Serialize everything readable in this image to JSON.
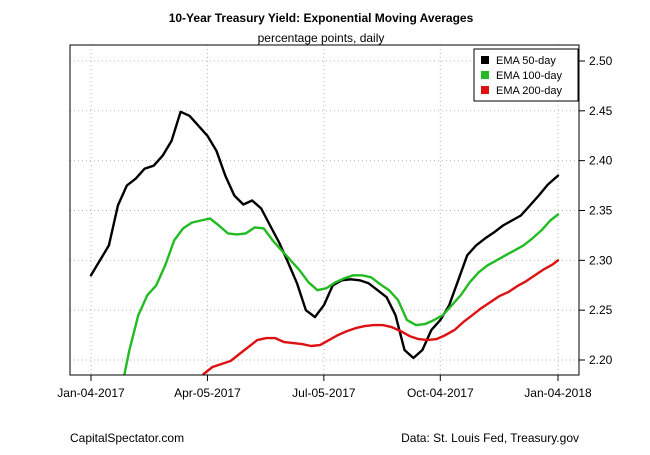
{
  "chart_data": {
    "type": "line",
    "title": "10-Year Treasury Yield: Exponential Moving Averages",
    "subtitle": "percentage points, daily",
    "xlabel": "",
    "ylabel": "",
    "x_tick_labels": [
      "Jan-04-2017",
      "Apr-05-2017",
      "Jul-05-2017",
      "Oct-04-2017",
      "Jan-04-2018"
    ],
    "y_tick_labels": [
      "2.20",
      "2.25",
      "2.30",
      "2.35",
      "2.40",
      "2.45",
      "2.50"
    ],
    "y_ticks": [
      2.2,
      2.25,
      2.3,
      2.35,
      2.4,
      2.45,
      2.5
    ],
    "ylim": [
      2.185,
      2.53
    ],
    "xlim": [
      "2016-12-22",
      "2018-01-12"
    ],
    "grid": true,
    "legend_position": "top-right",
    "series": [
      {
        "name": "EMA 50-day",
        "color": "#000000",
        "points": [
          [
            "2017-01-04",
            2.285
          ],
          [
            "2017-01-11",
            2.3
          ],
          [
            "2017-01-18",
            2.315
          ],
          [
            "2017-01-25",
            2.355
          ],
          [
            "2017-02-01",
            2.375
          ],
          [
            "2017-02-08",
            2.382
          ],
          [
            "2017-02-15",
            2.392
          ],
          [
            "2017-02-22",
            2.395
          ],
          [
            "2017-03-01",
            2.405
          ],
          [
            "2017-03-08",
            2.42
          ],
          [
            "2017-03-15",
            2.449
          ],
          [
            "2017-03-22",
            2.445
          ],
          [
            "2017-03-29",
            2.435
          ],
          [
            "2017-04-05",
            2.425
          ],
          [
            "2017-04-12",
            2.41
          ],
          [
            "2017-04-19",
            2.385
          ],
          [
            "2017-04-26",
            2.365
          ],
          [
            "2017-05-03",
            2.356
          ],
          [
            "2017-05-10",
            2.36
          ],
          [
            "2017-05-17",
            2.352
          ],
          [
            "2017-05-24",
            2.335
          ],
          [
            "2017-05-31",
            2.318
          ],
          [
            "2017-06-07",
            2.298
          ],
          [
            "2017-06-14",
            2.277
          ],
          [
            "2017-06-21",
            2.25
          ],
          [
            "2017-06-28",
            2.243
          ],
          [
            "2017-07-05",
            2.255
          ],
          [
            "2017-07-12",
            2.275
          ],
          [
            "2017-07-19",
            2.28
          ],
          [
            "2017-07-26",
            2.281
          ],
          [
            "2017-08-02",
            2.28
          ],
          [
            "2017-08-09",
            2.277
          ],
          [
            "2017-08-16",
            2.27
          ],
          [
            "2017-08-23",
            2.263
          ],
          [
            "2017-08-30",
            2.245
          ],
          [
            "2017-09-06",
            2.21
          ],
          [
            "2017-09-13",
            2.202
          ],
          [
            "2017-09-20",
            2.21
          ],
          [
            "2017-09-27",
            2.23
          ],
          [
            "2017-10-04",
            2.24
          ],
          [
            "2017-10-11",
            2.255
          ],
          [
            "2017-10-18",
            2.28
          ],
          [
            "2017-10-25",
            2.305
          ],
          [
            "2017-11-01",
            2.315
          ],
          [
            "2017-11-08",
            2.322
          ],
          [
            "2017-11-15",
            2.328
          ],
          [
            "2017-11-22",
            2.335
          ],
          [
            "2017-11-29",
            2.34
          ],
          [
            "2017-12-06",
            2.345
          ],
          [
            "2017-12-13",
            2.355
          ],
          [
            "2017-12-20",
            2.365
          ],
          [
            "2017-12-27",
            2.376
          ],
          [
            "2018-01-04",
            2.385
          ]
        ]
      },
      {
        "name": "EMA 100-day",
        "color": "#22bb22",
        "points": [
          [
            "2017-01-30",
            2.185
          ],
          [
            "2017-02-03",
            2.21
          ],
          [
            "2017-02-10",
            2.245
          ],
          [
            "2017-02-17",
            2.265
          ],
          [
            "2017-02-24",
            2.275
          ],
          [
            "2017-03-03",
            2.295
          ],
          [
            "2017-03-10",
            2.32
          ],
          [
            "2017-03-17",
            2.332
          ],
          [
            "2017-03-24",
            2.338
          ],
          [
            "2017-03-31",
            2.34
          ],
          [
            "2017-04-07",
            2.342
          ],
          [
            "2017-04-14",
            2.335
          ],
          [
            "2017-04-21",
            2.327
          ],
          [
            "2017-04-28",
            2.326
          ],
          [
            "2017-05-05",
            2.327
          ],
          [
            "2017-05-12",
            2.333
          ],
          [
            "2017-05-19",
            2.332
          ],
          [
            "2017-05-26",
            2.32
          ],
          [
            "2017-06-02",
            2.31
          ],
          [
            "2017-06-09",
            2.3
          ],
          [
            "2017-06-16",
            2.29
          ],
          [
            "2017-06-23",
            2.278
          ],
          [
            "2017-06-30",
            2.27
          ],
          [
            "2017-07-07",
            2.272
          ],
          [
            "2017-07-14",
            2.278
          ],
          [
            "2017-07-21",
            2.282
          ],
          [
            "2017-07-28",
            2.285
          ],
          [
            "2017-08-04",
            2.285
          ],
          [
            "2017-08-11",
            2.283
          ],
          [
            "2017-08-18",
            2.276
          ],
          [
            "2017-08-25",
            2.27
          ],
          [
            "2017-09-01",
            2.26
          ],
          [
            "2017-09-08",
            2.24
          ],
          [
            "2017-09-15",
            2.235
          ],
          [
            "2017-09-22",
            2.236
          ],
          [
            "2017-09-29",
            2.24
          ],
          [
            "2017-10-06",
            2.245
          ],
          [
            "2017-10-13",
            2.255
          ],
          [
            "2017-10-20",
            2.265
          ],
          [
            "2017-10-27",
            2.278
          ],
          [
            "2017-11-03",
            2.288
          ],
          [
            "2017-11-10",
            2.295
          ],
          [
            "2017-11-17",
            2.3
          ],
          [
            "2017-11-24",
            2.305
          ],
          [
            "2017-12-01",
            2.31
          ],
          [
            "2017-12-08",
            2.315
          ],
          [
            "2017-12-15",
            2.322
          ],
          [
            "2017-12-22",
            2.33
          ],
          [
            "2017-12-29",
            2.34
          ],
          [
            "2018-01-04",
            2.346
          ]
        ]
      },
      {
        "name": "EMA 200-day",
        "color": "#dd1111",
        "points": [
          [
            "2017-04-02",
            2.186
          ],
          [
            "2017-04-09",
            2.193
          ],
          [
            "2017-04-16",
            2.196
          ],
          [
            "2017-04-23",
            2.199
          ],
          [
            "2017-04-30",
            2.206
          ],
          [
            "2017-05-07",
            2.213
          ],
          [
            "2017-05-14",
            2.22
          ],
          [
            "2017-05-21",
            2.222
          ],
          [
            "2017-05-28",
            2.222
          ],
          [
            "2017-06-04",
            2.218
          ],
          [
            "2017-06-11",
            2.217
          ],
          [
            "2017-06-18",
            2.216
          ],
          [
            "2017-06-25",
            2.214
          ],
          [
            "2017-07-02",
            2.215
          ],
          [
            "2017-07-09",
            2.22
          ],
          [
            "2017-07-16",
            2.225
          ],
          [
            "2017-07-23",
            2.229
          ],
          [
            "2017-07-30",
            2.232
          ],
          [
            "2017-08-06",
            2.234
          ],
          [
            "2017-08-13",
            2.235
          ],
          [
            "2017-08-20",
            2.235
          ],
          [
            "2017-08-27",
            2.233
          ],
          [
            "2017-09-03",
            2.229
          ],
          [
            "2017-09-10",
            2.224
          ],
          [
            "2017-09-17",
            2.221
          ],
          [
            "2017-09-24",
            2.22
          ],
          [
            "2017-10-01",
            2.221
          ],
          [
            "2017-10-08",
            2.225
          ],
          [
            "2017-10-15",
            2.23
          ],
          [
            "2017-10-22",
            2.238
          ],
          [
            "2017-10-29",
            2.245
          ],
          [
            "2017-11-05",
            2.252
          ],
          [
            "2017-11-12",
            2.258
          ],
          [
            "2017-11-19",
            2.264
          ],
          [
            "2017-11-26",
            2.268
          ],
          [
            "2017-12-03",
            2.274
          ],
          [
            "2017-12-10",
            2.279
          ],
          [
            "2017-12-17",
            2.285
          ],
          [
            "2017-12-24",
            2.291
          ],
          [
            "2017-12-31",
            2.296
          ],
          [
            "2018-01-04",
            2.3
          ]
        ]
      }
    ]
  },
  "footer": {
    "left": "CapitalSpectator.com",
    "right": "Data: St. Louis Fed, Treasury.gov"
  }
}
